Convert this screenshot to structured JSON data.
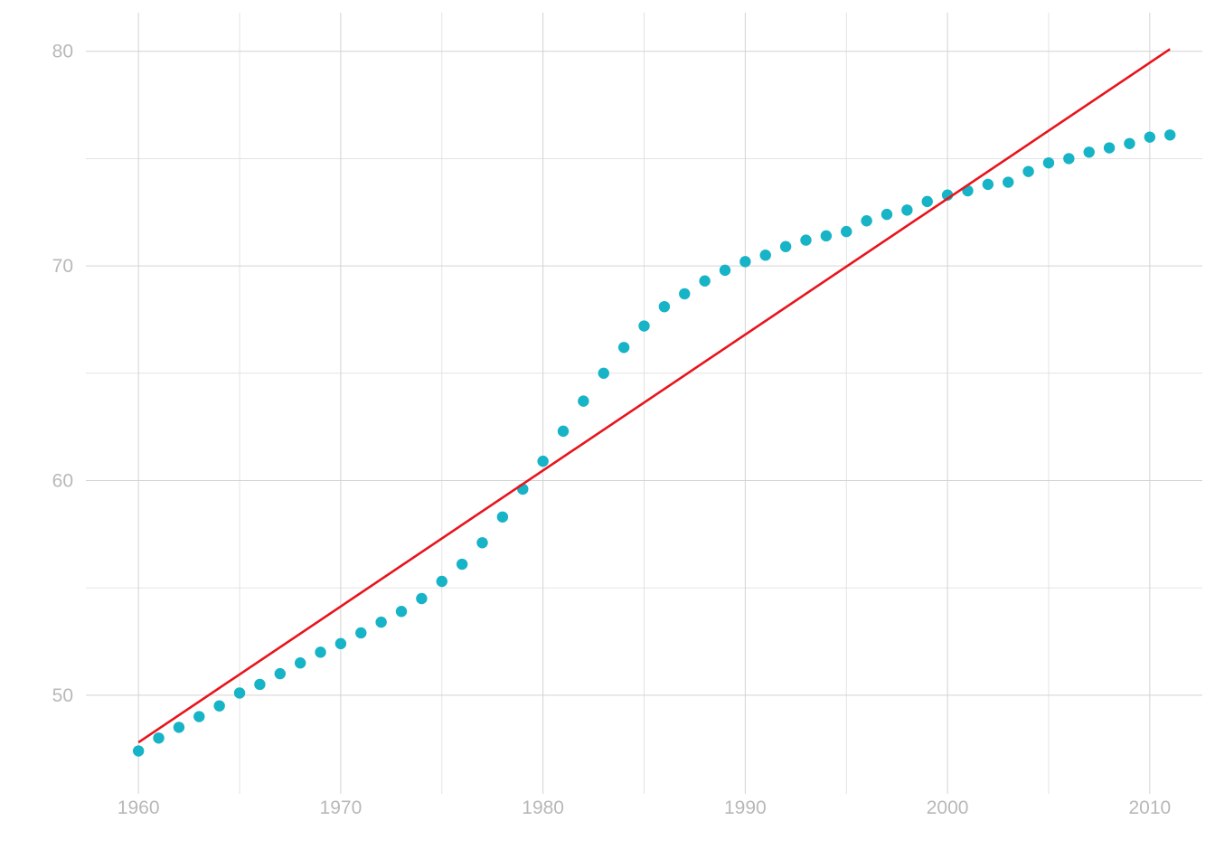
{
  "chart_data": {
    "type": "scatter",
    "title": "",
    "xlabel": "",
    "ylabel": "",
    "xlim": [
      1957.4,
      2012.6
    ],
    "ylim": [
      45.4,
      81.8
    ],
    "x_ticks": [
      1960,
      1970,
      1980,
      1990,
      2000,
      2010
    ],
    "y_ticks": [
      50,
      60,
      70,
      80
    ],
    "x_minor_ticks": [
      1965,
      1975,
      1985,
      1995,
      2005
    ],
    "y_minor_ticks": [
      55,
      65,
      75
    ],
    "grid": true,
    "legend": "none",
    "point_color": "#17b3c6",
    "line_color": "#e8141c",
    "series": [
      {
        "x": [
          1960,
          1961,
          1962,
          1963,
          1964,
          1965,
          1966,
          1967,
          1968,
          1969,
          1970,
          1971,
          1972,
          1973,
          1974,
          1975,
          1976,
          1977,
          1978,
          1979,
          1980,
          1981,
          1982,
          1983,
          1984,
          1985,
          1986,
          1987,
          1988,
          1989,
          1990,
          1991,
          1992,
          1993,
          1994,
          1995,
          1996,
          1997,
          1998,
          1999,
          2000,
          2001,
          2002,
          2003,
          2004,
          2005,
          2006,
          2007,
          2008,
          2009,
          2010,
          2011
        ],
        "values": [
          47.4,
          48.0,
          48.5,
          49.0,
          49.5,
          50.1,
          50.5,
          51.0,
          51.5,
          52.0,
          52.4,
          52.9,
          53.4,
          53.9,
          54.5,
          55.3,
          56.1,
          57.1,
          58.3,
          59.6,
          60.9,
          62.3,
          63.7,
          65.0,
          66.2,
          67.2,
          68.1,
          68.7,
          69.3,
          69.8,
          70.2,
          70.5,
          70.9,
          71.2,
          71.4,
          71.6,
          72.1,
          72.4,
          72.6,
          73.0,
          73.3,
          73.5,
          73.8,
          73.9,
          74.4,
          74.8,
          75.0,
          75.3,
          75.5,
          75.7,
          76.0,
          76.1
        ]
      }
    ],
    "trend_line": {
      "x": [
        1960,
        2011
      ],
      "y": [
        47.8,
        80.1
      ]
    }
  }
}
